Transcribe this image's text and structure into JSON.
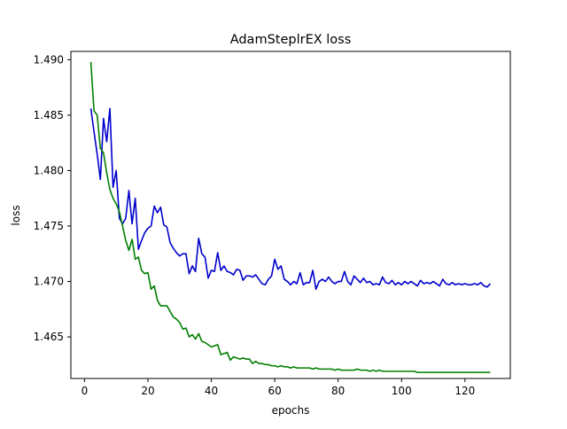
{
  "chart_data": {
    "type": "line",
    "title": "AdamSteplrEX loss",
    "xlabel": "epochs",
    "ylabel": "loss",
    "xlim": [
      -4.3,
      134.3
    ],
    "ylim": [
      1.46125,
      1.49075
    ],
    "xticks": [
      0,
      20,
      40,
      60,
      80,
      100,
      120
    ],
    "xtick_labels": [
      "0",
      "20",
      "40",
      "60",
      "80",
      "100",
      "120"
    ],
    "yticks": [
      1.465,
      1.47,
      1.475,
      1.48,
      1.485,
      1.49
    ],
    "ytick_labels": [
      "1.465",
      "1.470",
      "1.475",
      "1.480",
      "1.485",
      "1.490"
    ],
    "grid": false,
    "series": [
      {
        "color": "#0000cc",
        "x": [
          2,
          3,
          4,
          5,
          6,
          7,
          8,
          9,
          10,
          11,
          12,
          13,
          14,
          15,
          16,
          17,
          18,
          19,
          20,
          21,
          22,
          23,
          24,
          25,
          26,
          27,
          28,
          29,
          30,
          31,
          32,
          33,
          34,
          35,
          36,
          37,
          38,
          39,
          40,
          41,
          42,
          43,
          44,
          45,
          46,
          47,
          48,
          49,
          50,
          51,
          52,
          53,
          54,
          55,
          56,
          57,
          58,
          59,
          60,
          61,
          62,
          63,
          64,
          65,
          66,
          67,
          68,
          69,
          70,
          71,
          72,
          73,
          74,
          75,
          76,
          77,
          78,
          79,
          80,
          81,
          82,
          83,
          84,
          85,
          86,
          87,
          88,
          89,
          90,
          91,
          92,
          93,
          94,
          95,
          96,
          97,
          98,
          99,
          100,
          101,
          102,
          103,
          104,
          105,
          106,
          107,
          108,
          109,
          110,
          111,
          112,
          113,
          114,
          115,
          116,
          117,
          118,
          119,
          120,
          121,
          122,
          123,
          124,
          125,
          126,
          127,
          128
        ],
        "values": [
          1.4856,
          1.4835,
          1.4815,
          1.4792,
          1.4847,
          1.4826,
          1.4856,
          1.4785,
          1.48,
          1.4757,
          1.4752,
          1.4757,
          1.4782,
          1.4752,
          1.4775,
          1.4729,
          1.4737,
          1.4744,
          1.4748,
          1.475,
          1.4768,
          1.4762,
          1.4767,
          1.4751,
          1.4749,
          1.4735,
          1.473,
          1.4726,
          1.4723,
          1.4725,
          1.4725,
          1.4707,
          1.4714,
          1.4709,
          1.4739,
          1.4725,
          1.4722,
          1.4703,
          1.471,
          1.4709,
          1.4726,
          1.471,
          1.4714,
          1.4709,
          1.4708,
          1.4706,
          1.4711,
          1.471,
          1.4701,
          1.4705,
          1.4705,
          1.4704,
          1.4706,
          1.4702,
          1.4698,
          1.4697,
          1.4702,
          1.4705,
          1.472,
          1.4711,
          1.4714,
          1.4702,
          1.47,
          1.4697,
          1.47,
          1.4698,
          1.4708,
          1.4697,
          1.4699,
          1.4699,
          1.471,
          1.4693,
          1.47,
          1.4702,
          1.47,
          1.4704,
          1.47,
          1.4698,
          1.47,
          1.47,
          1.4709,
          1.47,
          1.4697,
          1.4705,
          1.4702,
          1.4699,
          1.4703,
          1.4699,
          1.47,
          1.4697,
          1.4698,
          1.4697,
          1.4704,
          1.4699,
          1.4698,
          1.4701,
          1.4697,
          1.4699,
          1.4697,
          1.47,
          1.4698,
          1.47,
          1.4698,
          1.4696,
          1.4701,
          1.4698,
          1.4699,
          1.4698,
          1.47,
          1.4698,
          1.4696,
          1.4702,
          1.4698,
          1.4697,
          1.4699,
          1.4697,
          1.4698,
          1.4697,
          1.4698,
          1.4697,
          1.4697,
          1.4698,
          1.4697,
          1.4699,
          1.4696,
          1.4695,
          1.4698
        ]
      },
      {
        "color": "#007f00",
        "x": [
          2,
          3,
          4,
          5,
          6,
          7,
          8,
          9,
          10,
          11,
          12,
          13,
          14,
          15,
          16,
          17,
          18,
          19,
          20,
          21,
          22,
          23,
          24,
          25,
          26,
          27,
          28,
          29,
          30,
          31,
          32,
          33,
          34,
          35,
          36,
          37,
          38,
          39,
          40,
          41,
          42,
          43,
          44,
          45,
          46,
          47,
          48,
          49,
          50,
          51,
          52,
          53,
          54,
          55,
          56,
          57,
          58,
          59,
          60,
          61,
          62,
          63,
          64,
          65,
          66,
          67,
          68,
          69,
          70,
          71,
          72,
          73,
          74,
          75,
          76,
          77,
          78,
          79,
          80,
          81,
          82,
          83,
          84,
          85,
          86,
          87,
          88,
          89,
          90,
          91,
          92,
          93,
          94,
          95,
          96,
          97,
          98,
          99,
          100,
          101,
          102,
          103,
          104,
          105,
          106,
          107,
          108,
          109,
          110,
          111,
          112,
          113,
          114,
          115,
          116,
          117,
          118,
          119,
          120,
          121,
          122,
          123,
          124,
          125,
          126,
          127,
          128
        ],
        "values": [
          1.4898,
          1.4854,
          1.485,
          1.482,
          1.4816,
          1.4798,
          1.4783,
          1.4775,
          1.477,
          1.4763,
          1.475,
          1.4737,
          1.4728,
          1.4738,
          1.472,
          1.4722,
          1.471,
          1.4707,
          1.4708,
          1.4693,
          1.4696,
          1.4683,
          1.4678,
          1.4678,
          1.4678,
          1.4673,
          1.4668,
          1.4666,
          1.4663,
          1.4657,
          1.4658,
          1.465,
          1.4652,
          1.4648,
          1.4653,
          1.4646,
          1.4645,
          1.4643,
          1.4641,
          1.4642,
          1.4643,
          1.4634,
          1.4635,
          1.4636,
          1.4629,
          1.4632,
          1.4631,
          1.463,
          1.4631,
          1.463,
          1.463,
          1.4626,
          1.4628,
          1.4626,
          1.4626,
          1.4625,
          1.4625,
          1.4624,
          1.4624,
          1.4623,
          1.4624,
          1.4623,
          1.4623,
          1.4622,
          1.4623,
          1.4622,
          1.4622,
          1.4622,
          1.4622,
          1.4622,
          1.4621,
          1.4622,
          1.4621,
          1.4621,
          1.4621,
          1.4621,
          1.4621,
          1.462,
          1.4621,
          1.462,
          1.462,
          1.462,
          1.462,
          1.462,
          1.4621,
          1.462,
          1.462,
          1.462,
          1.4619,
          1.462,
          1.4619,
          1.462,
          1.4619,
          1.4619,
          1.4619,
          1.4619,
          1.4619,
          1.4619,
          1.4619,
          1.4619,
          1.4619,
          1.4619,
          1.4619,
          1.4618,
          1.4618,
          1.4618,
          1.4618,
          1.4618,
          1.4618,
          1.4618,
          1.4618,
          1.4618,
          1.4618,
          1.4618,
          1.4618,
          1.4618,
          1.4618,
          1.4618,
          1.4618,
          1.4618,
          1.4618,
          1.4618,
          1.4618,
          1.4618,
          1.4618,
          1.4618,
          1.4618
        ]
      }
    ]
  }
}
